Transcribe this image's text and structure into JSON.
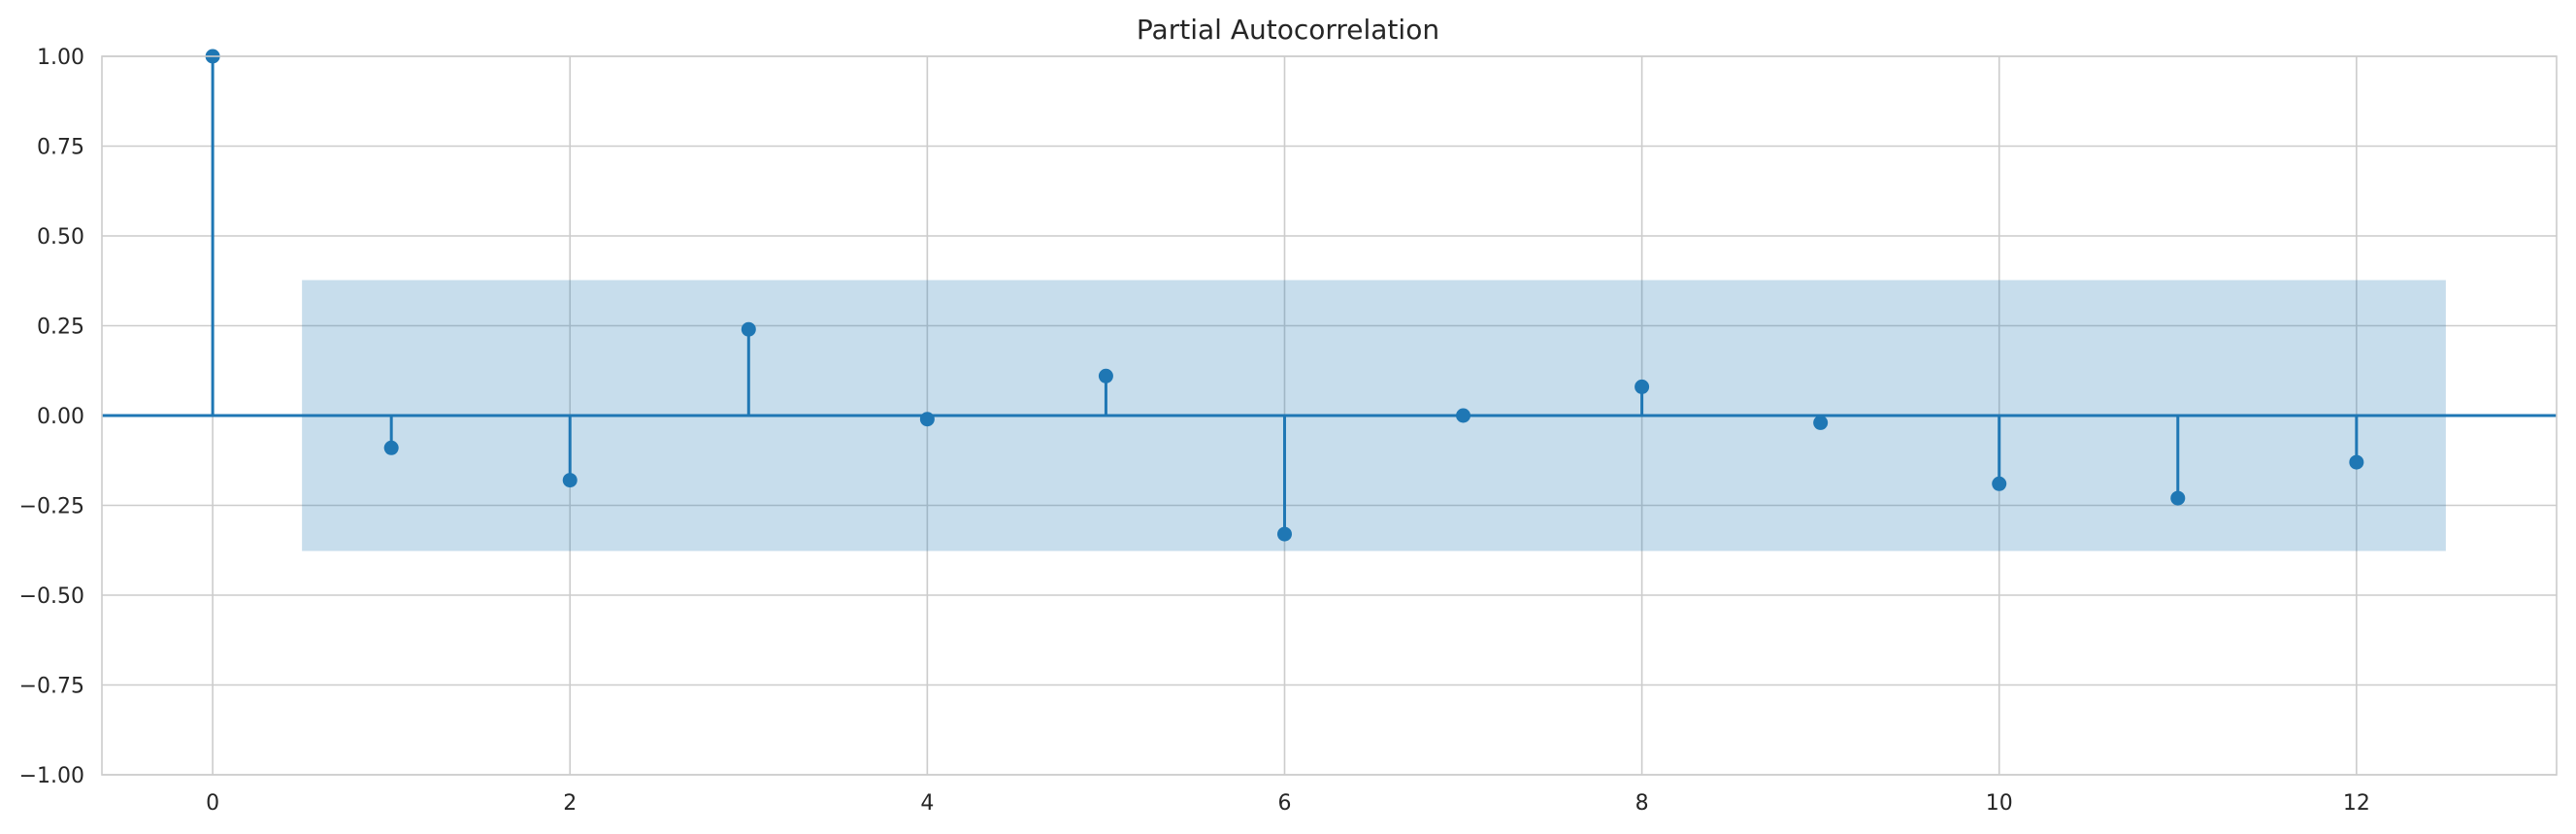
{
  "chart_data": {
    "type": "stem",
    "title": "Partial Autocorrelation",
    "xlabel": "",
    "ylabel": "",
    "xlim": [
      -0.62,
      13.12
    ],
    "ylim": [
      -1.0,
      1.0
    ],
    "x_ticks": [
      0,
      2,
      4,
      6,
      8,
      10,
      12
    ],
    "y_ticks": [
      -1.0,
      -0.75,
      -0.5,
      -0.25,
      0.0,
      0.25,
      0.5,
      0.75,
      1.0
    ],
    "x_tick_labels": [
      "0",
      "2",
      "4",
      "6",
      "8",
      "10",
      "12"
    ],
    "y_tick_labels": [
      "−1.00",
      "−0.75",
      "−0.50",
      "−0.25",
      "0.00",
      "0.25",
      "0.50",
      "0.75",
      "1.00"
    ],
    "grid": true,
    "lags": [
      0,
      1,
      2,
      3,
      4,
      5,
      6,
      7,
      8,
      9,
      10,
      11,
      12
    ],
    "values": [
      1.0,
      -0.09,
      -0.18,
      0.24,
      -0.01,
      0.11,
      -0.33,
      0.0,
      0.08,
      -0.02,
      -0.19,
      -0.23,
      -0.13
    ],
    "confidence_band": {
      "x_start": 0.5,
      "x_end": 12.5,
      "lower": -0.377,
      "upper": 0.377
    },
    "colors": {
      "series": "#1f77b4",
      "grid": "#cccccc",
      "text": "#262626"
    }
  }
}
